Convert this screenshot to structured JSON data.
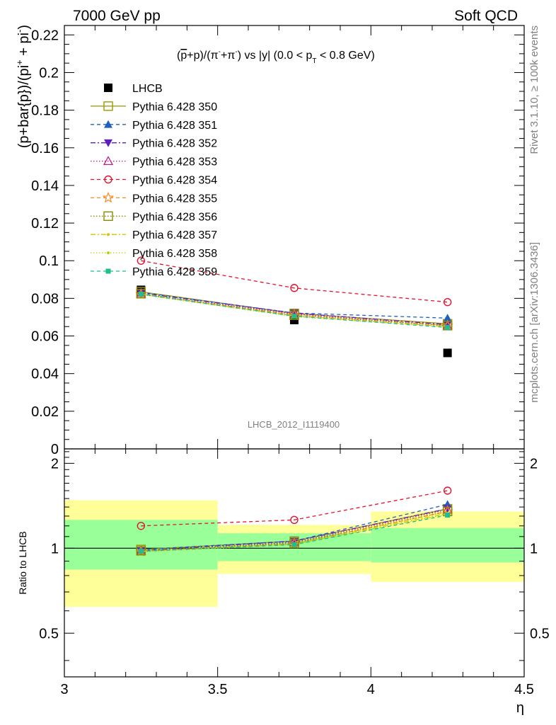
{
  "header": {
    "left": "7000 GeV pp",
    "right": "Soft QCD"
  },
  "side_text": {
    "top": "Rivet 3.1.10, ≥ 100k events",
    "bottom": "mcplots.cern.ch [arXiv:1306.3436]"
  },
  "analysis_id": "LHCB_2012_I1119400",
  "chart_data": [
    {
      "type": "line",
      "title": "(p̄+p)/(π⁻+π⁻) vs |y| (0.0 < p_T < 0.8 GeV)",
      "ylabel": "(p+bar{p})/(pi⁺ + pi⁻)",
      "xlabel": "η",
      "xlim": [
        3,
        4.5
      ],
      "ylim": [
        0,
        0.225
      ],
      "x_ticks": [
        "3",
        "3.5",
        "4",
        "4.5"
      ],
      "y_ticks": [
        "0",
        "0.02",
        "0.04",
        "0.06",
        "0.08",
        "0.1",
        "0.12",
        "0.14",
        "0.16",
        "0.18",
        "0.2",
        "0.22"
      ],
      "x": [
        3.25,
        3.75,
        4.25
      ],
      "series": [
        {
          "name": "LHCB",
          "values": [
            0.0845,
            0.0685,
            0.051
          ],
          "color": "#000000",
          "marker": "square-filled",
          "dash": "none"
        },
        {
          "name": "Pythia 6.428 350",
          "values": [
            0.0835,
            0.072,
            0.0665
          ],
          "color": "#999900",
          "marker": "square-open",
          "dash": "solid"
        },
        {
          "name": "Pythia 6.428 351",
          "values": [
            0.0832,
            0.0722,
            0.0695
          ],
          "color": "#1f5fbf",
          "marker": "triangle-up-filled",
          "dash": "dashed"
        },
        {
          "name": "Pythia 6.428 352",
          "values": [
            0.0828,
            0.0722,
            0.066
          ],
          "color": "#5b1fbf",
          "marker": "triangle-down-filled",
          "dash": "dashdot"
        },
        {
          "name": "Pythia 6.428 353",
          "values": [
            0.0822,
            0.0718,
            0.0655
          ],
          "color": "#c0208a",
          "marker": "triangle-up-open",
          "dash": "dotted"
        },
        {
          "name": "Pythia 6.428 354",
          "values": [
            0.1,
            0.0855,
            0.078
          ],
          "color": "#e8112d",
          "marker": "circle-open",
          "dash": "dashed"
        },
        {
          "name": "Pythia 6.428 355",
          "values": [
            0.0822,
            0.0713,
            0.0655
          ],
          "color": "#f28c28",
          "marker": "star-open",
          "dash": "dashed"
        },
        {
          "name": "Pythia 6.428 356",
          "values": [
            0.0825,
            0.071,
            0.0655
          ],
          "color": "#8a8a00",
          "marker": "square-open",
          "dash": "dotted"
        },
        {
          "name": "Pythia 6.428 357",
          "values": [
            0.0822,
            0.0707,
            0.065
          ],
          "color": "#d4c400",
          "marker": "dot",
          "dash": "dashdot"
        },
        {
          "name": "Pythia 6.428 358",
          "values": [
            0.082,
            0.0703,
            0.0648
          ],
          "color": "#b8d400",
          "marker": "dot",
          "dash": "dotted"
        },
        {
          "name": "Pythia 6.428 359",
          "values": [
            0.0822,
            0.0705,
            0.0645
          ],
          "color": "#1fbf8c",
          "marker": "square-filled-small",
          "dash": "dashed"
        }
      ]
    },
    {
      "type": "line",
      "ylabel": "Ratio to LHCB",
      "xlabel": "η",
      "xlim": [
        3,
        4.5
      ],
      "ylim": [
        0.35,
        2.25
      ],
      "y_ticks": [
        "0.5",
        "1",
        "2"
      ],
      "band_bins": [
        [
          3,
          3.5
        ],
        [
          3.5,
          4
        ],
        [
          4,
          4.5
        ]
      ],
      "inner_band": [
        [
          0.84,
          1.26
        ],
        [
          0.9,
          1.13
        ],
        [
          0.89,
          1.18
        ]
      ],
      "outer_band": [
        [
          0.62,
          1.48
        ],
        [
          0.81,
          1.21
        ],
        [
          0.76,
          1.35
        ]
      ],
      "x": [
        3.25,
        3.75,
        4.25
      ],
      "series": [
        {
          "name": "Pythia 6.428 350",
          "values": [
            0.99,
            1.06,
            1.38
          ]
        },
        {
          "name": "Pythia 6.428 351",
          "values": [
            0.99,
            1.06,
            1.43
          ]
        },
        {
          "name": "Pythia 6.428 352",
          "values": [
            0.98,
            1.06,
            1.38
          ]
        },
        {
          "name": "Pythia 6.428 353",
          "values": [
            0.975,
            1.05,
            1.37
          ]
        },
        {
          "name": "Pythia 6.428 354",
          "values": [
            1.2,
            1.26,
            1.6
          ]
        },
        {
          "name": "Pythia 6.428 355",
          "values": [
            0.975,
            1.04,
            1.35
          ]
        },
        {
          "name": "Pythia 6.428 356",
          "values": [
            0.98,
            1.04,
            1.35
          ]
        },
        {
          "name": "Pythia 6.428 357",
          "values": [
            0.975,
            1.035,
            1.33
          ]
        },
        {
          "name": "Pythia 6.428 358",
          "values": [
            0.97,
            1.03,
            1.32
          ]
        },
        {
          "name": "Pythia 6.428 359",
          "values": [
            0.975,
            1.03,
            1.31
          ]
        }
      ]
    }
  ]
}
